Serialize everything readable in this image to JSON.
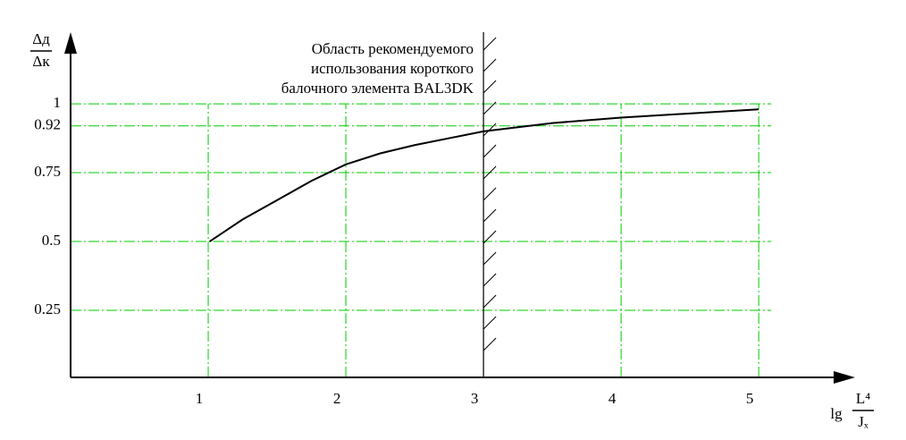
{
  "chart_data": {
    "type": "line",
    "annotation": [
      "Область рекомендуемого",
      "использования короткого",
      "балочного элемента BAL3DK"
    ],
    "y_label": {
      "numerator": "Δд",
      "denominator": "Δк"
    },
    "x_label": {
      "prefix": "lg",
      "numerator": "L⁴",
      "denominator": "Jₓ"
    },
    "x": [
      1.01,
      1.25,
      1.5,
      1.75,
      2,
      2.25,
      2.5,
      2.75,
      3,
      3.5,
      4,
      4.5,
      5
    ],
    "series": [
      {
        "color": "#000000",
        "values": [
          0.5,
          0.58,
          0.65,
          0.72,
          0.78,
          0.82,
          0.85,
          0.875,
          0.9,
          0.93,
          0.95,
          0.965,
          0.98
        ]
      }
    ],
    "region_boundary": 3,
    "xlim": [
      0,
      5.7
    ],
    "ylim": [
      0,
      1.26
    ],
    "xticks": [
      1,
      2,
      3,
      4,
      5
    ],
    "yticks": [
      0.25,
      0.5,
      0.75,
      0.92,
      1
    ],
    "grid": true,
    "grid_color": "#00cc00"
  }
}
